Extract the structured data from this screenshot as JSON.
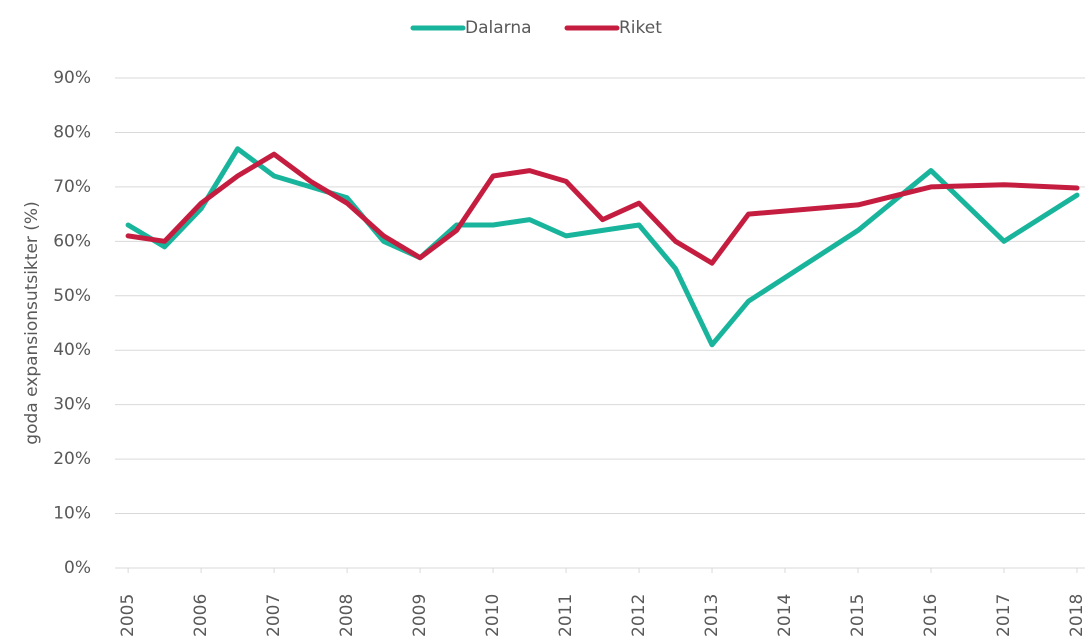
{
  "chart_data": {
    "type": "line",
    "y_label": "goda expansionsutsikter (%)",
    "x": [
      2005,
      2005.5,
      2006,
      2006.5,
      2007,
      2007.5,
      2008,
      2008.5,
      2009,
      2009.5,
      2010,
      2010.5,
      2011,
      2011.5,
      2012,
      2012.5,
      2013,
      2013.5,
      2015,
      2016,
      2017,
      2018
    ],
    "xlim": [
      2004.82,
      2018.11
    ],
    "xticks": [
      2005,
      2006,
      2007,
      2008,
      2009,
      2010,
      2011,
      2012,
      2013,
      2014,
      2015,
      2016,
      2017,
      2018
    ],
    "ylim": [
      0,
      90
    ],
    "yticks": [
      {
        "value": 0,
        "label": "0%"
      },
      {
        "value": 10,
        "label": "10%"
      },
      {
        "value": 20,
        "label": "20%"
      },
      {
        "value": 30,
        "label": "30%"
      },
      {
        "value": 40,
        "label": "40%"
      },
      {
        "value": 50,
        "label": "50%"
      },
      {
        "value": 60,
        "label": "60%"
      },
      {
        "value": 70,
        "label": "70%"
      },
      {
        "value": 80,
        "label": "80%"
      },
      {
        "value": 90,
        "label": "90%"
      }
    ],
    "grid": true,
    "legend": "top",
    "series": [
      {
        "name": "Dalarna",
        "color": "#19b49c",
        "values": [
          63,
          59,
          66,
          77,
          72,
          70,
          68,
          60,
          57,
          63,
          63,
          64,
          61,
          62,
          63,
          55,
          41,
          49,
          62,
          73,
          60,
          68.5
        ]
      },
      {
        "name": "Riket",
        "color": "#c51d3f",
        "values": [
          61,
          60,
          67,
          72,
          76,
          71,
          67,
          61,
          57,
          62,
          72,
          73,
          71,
          64,
          67,
          60,
          56,
          65,
          66.7,
          70,
          70.4,
          69.8
        ]
      }
    ]
  }
}
